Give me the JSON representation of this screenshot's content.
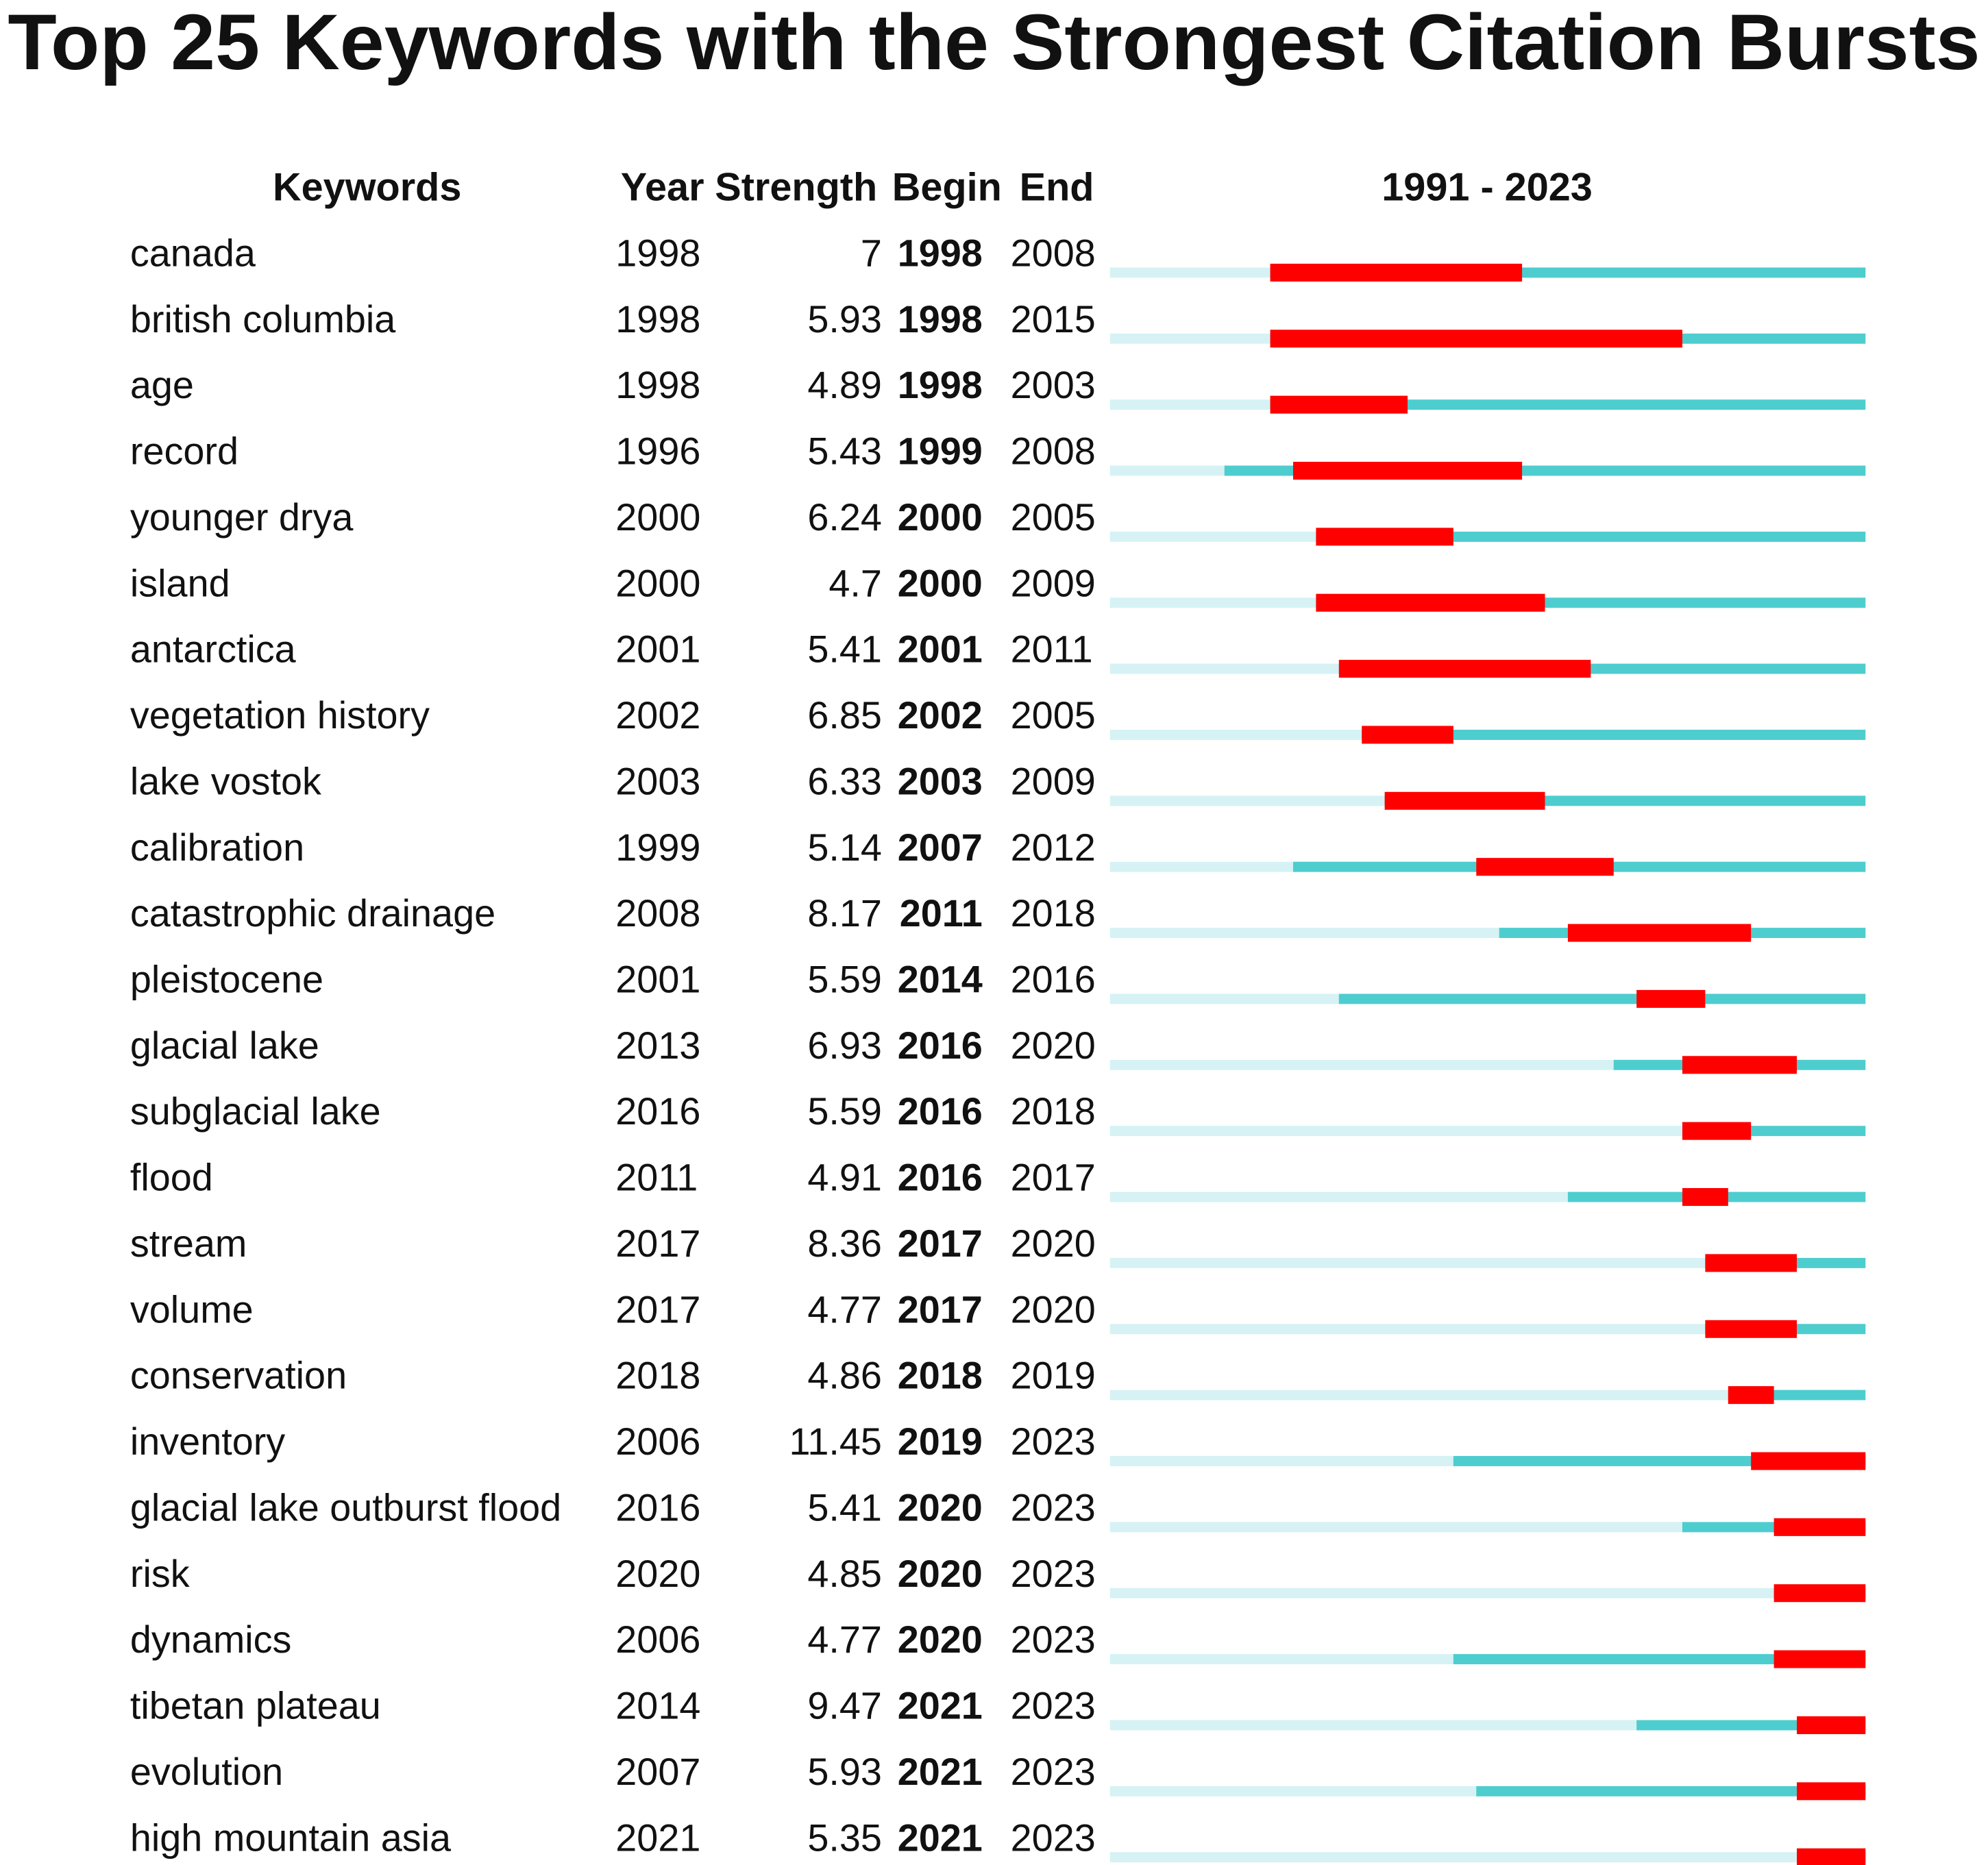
{
  "chart_data": {
    "type": "burst",
    "title": "Top 25 Keywords with the Strongest Citation Bursts",
    "headers": {
      "keyword": "Keywords",
      "year": "Year",
      "strength": "Strength",
      "begin": "Begin",
      "end": "End"
    },
    "range_label": "1991 - 2023",
    "xlim": [
      1991,
      2023
    ],
    "colors": {
      "background": "#d6f2f4",
      "active": "#4ecdcf",
      "burst": "#ff0000"
    },
    "rows": [
      {
        "keyword": "canada",
        "year": 1998,
        "strength": 7,
        "begin": 1998,
        "end": 2008
      },
      {
        "keyword": "british columbia",
        "year": 1998,
        "strength": 5.93,
        "begin": 1998,
        "end": 2015
      },
      {
        "keyword": "age",
        "year": 1998,
        "strength": 4.89,
        "begin": 1998,
        "end": 2003
      },
      {
        "keyword": "record",
        "year": 1996,
        "strength": 5.43,
        "begin": 1999,
        "end": 2008
      },
      {
        "keyword": "younger drya",
        "year": 2000,
        "strength": 6.24,
        "begin": 2000,
        "end": 2005
      },
      {
        "keyword": "island",
        "year": 2000,
        "strength": 4.7,
        "begin": 2000,
        "end": 2009
      },
      {
        "keyword": "antarctica",
        "year": 2001,
        "strength": 5.41,
        "begin": 2001,
        "end": 2011
      },
      {
        "keyword": "vegetation history",
        "year": 2002,
        "strength": 6.85,
        "begin": 2002,
        "end": 2005
      },
      {
        "keyword": "lake vostok",
        "year": 2003,
        "strength": 6.33,
        "begin": 2003,
        "end": 2009
      },
      {
        "keyword": "calibration",
        "year": 1999,
        "strength": 5.14,
        "begin": 2007,
        "end": 2012
      },
      {
        "keyword": "catastrophic drainage",
        "year": 2008,
        "strength": 8.17,
        "begin": 2011,
        "end": 2018
      },
      {
        "keyword": "pleistocene",
        "year": 2001,
        "strength": 5.59,
        "begin": 2014,
        "end": 2016
      },
      {
        "keyword": "glacial lake",
        "year": 2013,
        "strength": 6.93,
        "begin": 2016,
        "end": 2020
      },
      {
        "keyword": "subglacial lake",
        "year": 2016,
        "strength": 5.59,
        "begin": 2016,
        "end": 2018
      },
      {
        "keyword": "flood",
        "year": 2011,
        "strength": 4.91,
        "begin": 2016,
        "end": 2017
      },
      {
        "keyword": "stream",
        "year": 2017,
        "strength": 8.36,
        "begin": 2017,
        "end": 2020
      },
      {
        "keyword": "volume",
        "year": 2017,
        "strength": 4.77,
        "begin": 2017,
        "end": 2020
      },
      {
        "keyword": "conservation",
        "year": 2018,
        "strength": 4.86,
        "begin": 2018,
        "end": 2019
      },
      {
        "keyword": "inventory",
        "year": 2006,
        "strength": 11.45,
        "begin": 2019,
        "end": 2023
      },
      {
        "keyword": "glacial lake outburst flood",
        "year": 2016,
        "strength": 5.41,
        "begin": 2020,
        "end": 2023
      },
      {
        "keyword": "risk",
        "year": 2020,
        "strength": 4.85,
        "begin": 2020,
        "end": 2023
      },
      {
        "keyword": "dynamics",
        "year": 2006,
        "strength": 4.77,
        "begin": 2020,
        "end": 2023
      },
      {
        "keyword": "tibetan plateau",
        "year": 2014,
        "strength": 9.47,
        "begin": 2021,
        "end": 2023
      },
      {
        "keyword": "evolution",
        "year": 2007,
        "strength": 5.93,
        "begin": 2021,
        "end": 2023
      },
      {
        "keyword": "high mountain asia",
        "year": 2021,
        "strength": 5.35,
        "begin": 2021,
        "end": 2023
      }
    ]
  }
}
